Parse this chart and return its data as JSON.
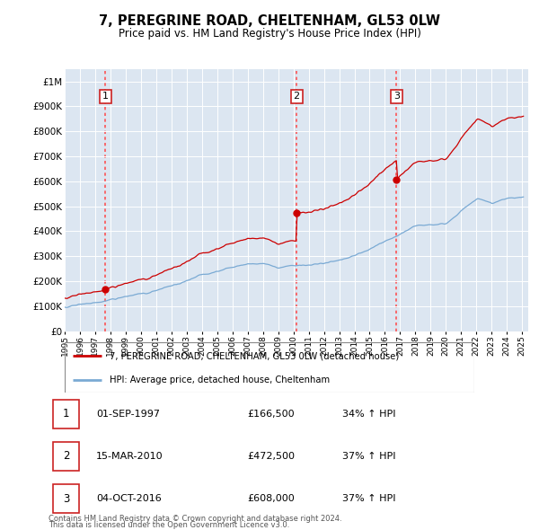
{
  "title": "7, PEREGRINE ROAD, CHELTENHAM, GL53 0LW",
  "subtitle": "Price paid vs. HM Land Registry's House Price Index (HPI)",
  "sale_label_short": [
    "01-SEP-1997",
    "15-MAR-2010",
    "04-OCT-2016"
  ],
  "sale_prices_str": [
    "£166,500",
    "£472,500",
    "£608,000"
  ],
  "sale_hpi_str": [
    "34% ↑ HPI",
    "37% ↑ HPI",
    "37% ↑ HPI"
  ],
  "legend_line1": "7, PEREGRINE ROAD, CHELTENHAM, GL53 0LW (detached house)",
  "legend_line2": "HPI: Average price, detached house, Cheltenham",
  "footer1": "Contains HM Land Registry data © Crown copyright and database right 2024.",
  "footer2": "This data is licensed under the Open Government Licence v3.0.",
  "price_color": "#cc0000",
  "hpi_color": "#7aaad4",
  "plot_bg": "#dce6f1",
  "sale_years_decimal": [
    1997.67,
    2010.21,
    2016.76
  ],
  "sale_prices": [
    166500,
    472500,
    608000
  ],
  "hpi_base_points_x": [
    1995,
    1996,
    1997,
    1998,
    1999,
    2000,
    2001,
    2002,
    2003,
    2004,
    2005,
    2006,
    2007,
    2008,
    2009,
    2010,
    2011,
    2012,
    2013,
    2014,
    2015,
    2016,
    2017,
    2018,
    2019,
    2020,
    2021,
    2022,
    2023,
    2024,
    2025
  ],
  "hpi_base_points_y": [
    96000,
    103000,
    113000,
    124000,
    135000,
    148000,
    161000,
    175000,
    192000,
    210000,
    225000,
    240000,
    258000,
    255000,
    235000,
    248000,
    252000,
    256000,
    268000,
    285000,
    310000,
    340000,
    375000,
    405000,
    420000,
    430000,
    480000,
    530000,
    510000,
    530000,
    540000
  ],
  "ylim": [
    0,
    1050000
  ],
  "xlim_start": 1995.4,
  "xlim_end": 2025.4
}
